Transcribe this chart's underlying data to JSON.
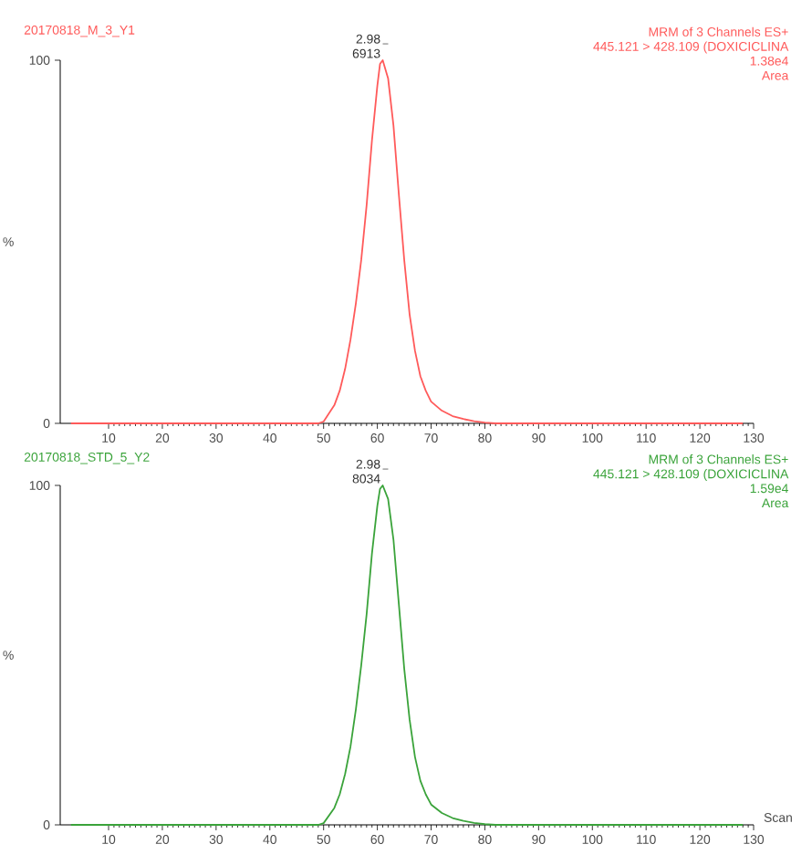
{
  "chart_data": [
    {
      "type": "line",
      "title": "20170818_M_3_Y1",
      "ylabel": "%",
      "annotations": [
        "MRM of 3 Channels ES+",
        "445.121 > 428.109 (DOXICICLINA",
        "1.38e4",
        "Area",
        "2.98",
        "6913"
      ],
      "x": [
        3,
        49,
        50,
        52,
        53,
        54,
        55,
        56,
        57,
        58,
        59,
        60,
        60.5,
        61,
        62,
        63,
        64,
        65,
        66,
        67,
        68,
        69,
        70,
        72,
        74,
        76,
        78,
        80,
        82,
        128
      ],
      "series": [
        {
          "color": "#ff5a5a",
          "values": [
            0,
            0,
            0.5,
            5,
            9,
            15,
            23,
            33,
            45,
            60,
            78,
            93,
            99,
            100,
            95,
            82,
            63,
            45,
            30,
            20,
            13,
            9,
            6,
            3.5,
            2,
            1.2,
            0.6,
            0.2,
            0,
            0
          ]
        }
      ],
      "xlim": [
        1,
        130
      ],
      "ylim": [
        0,
        100
      ],
      "xticks": [
        10,
        20,
        30,
        40,
        50,
        60,
        70,
        80,
        90,
        100,
        110,
        120,
        130
      ],
      "yticks": [
        0,
        100
      ]
    },
    {
      "type": "line",
      "title": "20170818_STD_5_Y2",
      "ylabel": "%",
      "xlabel": "Scan",
      "annotations": [
        "MRM of 3 Channels ES+",
        "445.121 > 428.109 (DOXICICLINA",
        "1.59e4",
        "Area",
        "2.98",
        "8034"
      ],
      "x": [
        3,
        49,
        50,
        52,
        53,
        54,
        55,
        56,
        57,
        58,
        59,
        60,
        60.5,
        61,
        62,
        63,
        64,
        65,
        66,
        67,
        68,
        69,
        70,
        72,
        74,
        76,
        78,
        80,
        82,
        128
      ],
      "series": [
        {
          "color": "#3aa33a",
          "values": [
            0,
            0,
            0.5,
            5,
            9,
            15,
            23,
            34,
            47,
            62,
            80,
            94,
            99,
            100,
            96,
            84,
            65,
            46,
            31,
            20,
            13,
            9,
            6,
            3.5,
            2,
            1.2,
            0.6,
            0.2,
            0,
            0
          ]
        }
      ],
      "xlim": [
        1,
        130
      ],
      "ylim": [
        0,
        100
      ],
      "xticks": [
        10,
        20,
        30,
        40,
        50,
        60,
        70,
        80,
        90,
        100,
        110,
        120,
        130
      ],
      "yticks": [
        0,
        100
      ]
    }
  ]
}
